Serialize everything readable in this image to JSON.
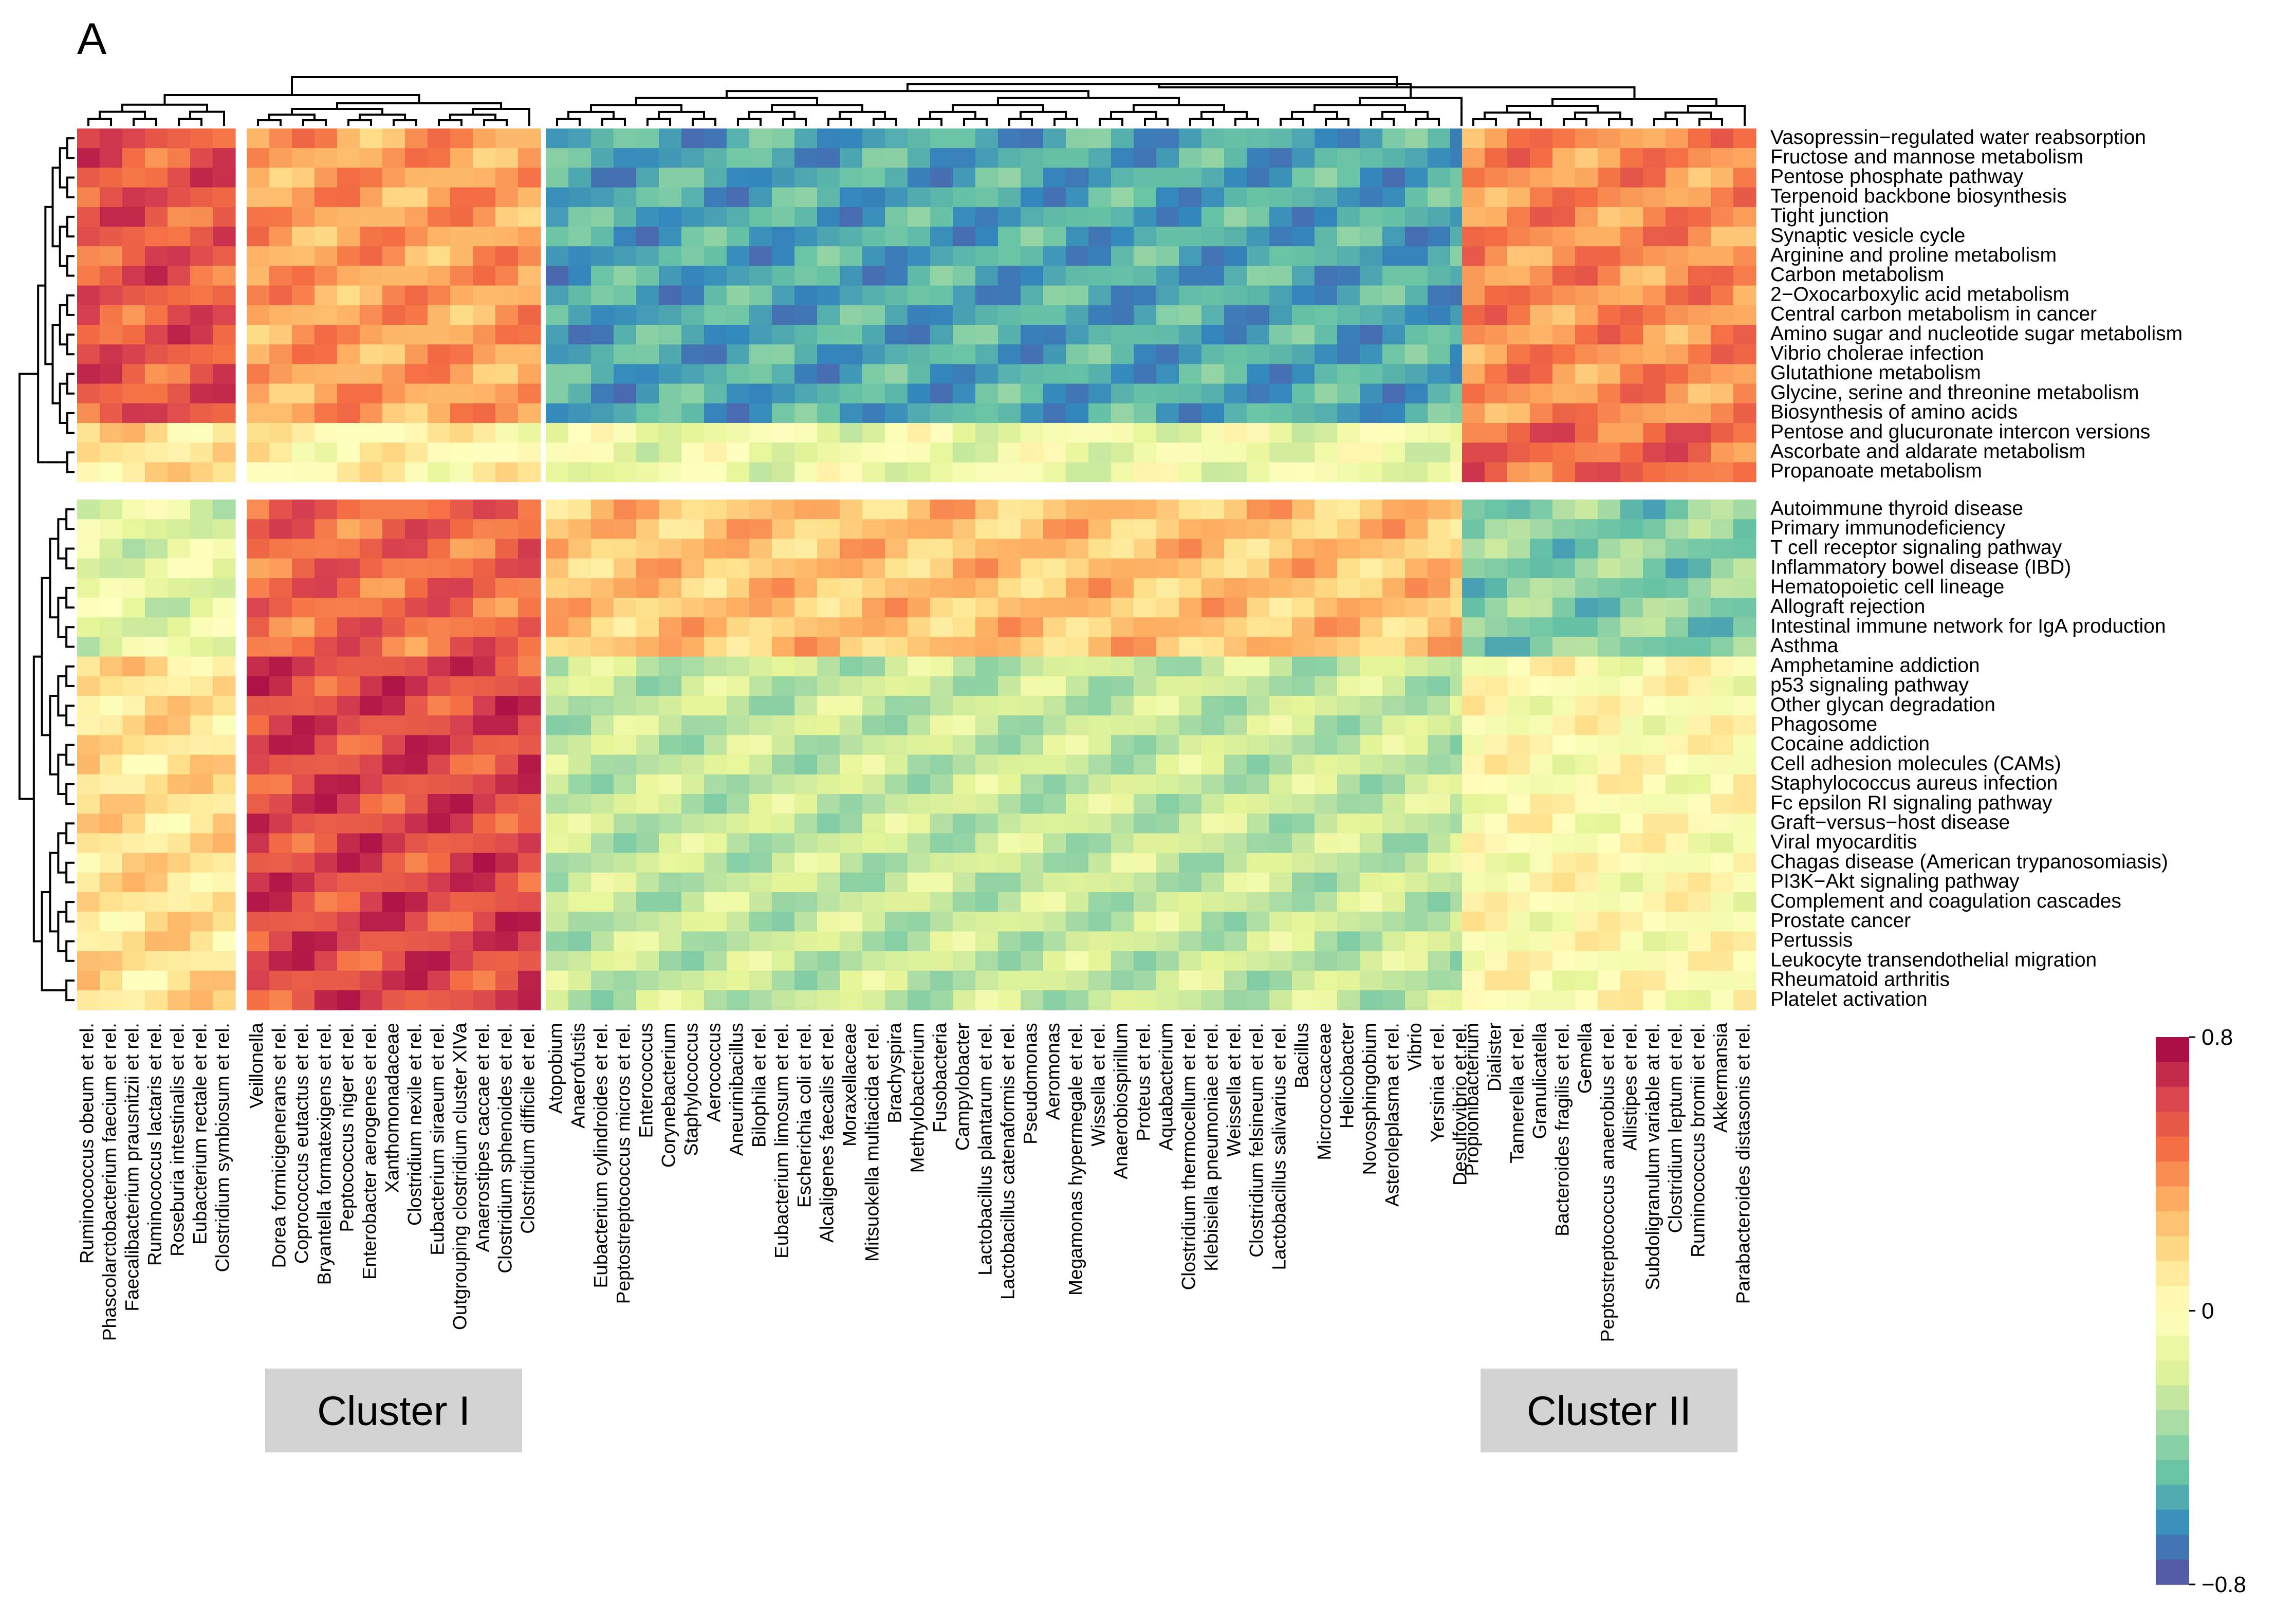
{
  "chart_data": {
    "type": "heatmap",
    "panel_label": "A",
    "color_scale": {
      "min": -0.8,
      "max": 0.8,
      "tick_labels": [
        "0.8",
        "0",
        "−0.8"
      ],
      "colors": [
        "#5E4FA2",
        "#3288BD",
        "#66C2A5",
        "#ABDDA4",
        "#E6F598",
        "#FFFFBF",
        "#FEE08B",
        "#FDAE61",
        "#F46D43",
        "#D53E4F",
        "#9E0142"
      ]
    },
    "rows": [
      "Vasopressin−regulated water reabsorption",
      "Fructose and mannose metabolism",
      "Pentose phosphate pathway",
      "Terpenoid backbone biosynthesis",
      "Tight junction",
      "Synaptic vesicle cycle",
      "Arginine and proline metabolism",
      "Carbon metabolism",
      "2−Oxocarboxylic acid metabolism",
      "Central carbon metabolism in cancer",
      "Amino sugar and nucleotide sugar metabolism",
      "Vibrio cholerae infection",
      "Glutathione metabolism",
      "Glycine, serine and threonine metabolism",
      "Biosynthesis of amino acids",
      "Pentose and glucuronate intercon versions",
      "Ascorbate and aldarate metabolism",
      "Propanoate metabolism",
      "Autoimmune thyroid disease",
      "Primary immunodeficiency",
      "T cell receptor signaling pathway",
      "Inflammatory bowel disease (IBD)",
      "Hematopoietic cell lineage",
      "Allograft rejection",
      "Intestinal immune network for IgA production",
      "Asthma",
      "Amphetamine addiction",
      "p53 signaling pathway",
      "Other glycan degradation",
      "Phagosome",
      "Cocaine addiction",
      "Cell adhesion molecules (CAMs)",
      "Staphylococcus aureus infection",
      "Fc epsilon RI signaling pathway",
      "Graft−versus−host disease",
      "Viral myocarditis",
      "Chagas disease (American trypanosomiasis)",
      "PI3K−Akt signaling pathway",
      "Complement and coagulation cascades",
      "Prostate cancer",
      "Pertussis",
      "Leukocyte transendothelial migration",
      "Rheumatoid arthritis",
      "Platelet activation"
    ],
    "row_groups": [
      18,
      26
    ],
    "column_groups": [
      {
        "columns": [
          "Ruminococcus obeum et rel.",
          "Phascolarctobacterium faecium et rel.",
          "Faecalibacterium prausnitzii et rel.",
          "Ruminococcus lactaris et rel.",
          "Roseburia intestinalis et rel.",
          "Eubacterium rectale et rel.",
          "Clostridium symbiosum et rel."
        ]
      },
      {
        "columns": [
          "Veillonella",
          "Dorea formicigenerans et rel.",
          "Coprococcus eutactus et rel.",
          "Bryantella formatexigens et rel.",
          "Peptococcus niger et rel.",
          "Enterobacter aerogenes et rel.",
          "Xanthomonadaceae",
          "Clostridium nexile et rel.",
          "Eubacterium siraeum et rel.",
          "Outgrouping clostridium cluster XIVa",
          "Anaerostipes caccae et rel.",
          "Clostridium sphenoides et rel.",
          "Clostridium difficile et rel."
        ]
      },
      {
        "columns": [
          "Atopobium",
          "Anaerofustis",
          "Eubacterium cylindroides et rel.",
          "Peptostreptococcus micros et rel.",
          "Enterococcus",
          "Corynebacterium",
          "Staphylococcus",
          "Aerococcus",
          "Aneurinibacillus",
          "Bilophila et rel.",
          "Eubacterium limosum et rel.",
          "Escherichia coli et rel.",
          "Alcaligenes faecalis et rel.",
          "Moraxellaceae",
          "Mitsuokella multiacida et rel.",
          "Brachyspira",
          "Methylobacterium",
          "Fusobacteria",
          "Campylobacter",
          "Lactobacillus plantarum et rel.",
          "Lactobacillus catenaformis et rel.",
          "Pseudomonas",
          "Aeromonas",
          "Megamonas hypermegale et rel.",
          "Wissella et rel.",
          "Anaerobiospirillum",
          "Proteus et rel.",
          "Aquabacterium",
          "Clostridium thermocellum et rel.",
          "Klebisiella pneumoniae et rel.",
          "Weissella et rel.",
          "Clostridium felsineum et rel.",
          "Lactobacillus salivarius et rel.",
          "Bacillus",
          "Micrococcaceae",
          "Helicobacter",
          "Novosphingobium",
          "Asteroleplasma et rel.",
          "Vibrio",
          "Yersinia et rel.",
          "Desulfovibrio et rel."
        ]
      },
      {
        "columns": [
          "Propionibacterium",
          "Dialister",
          "Tannerella et rel.",
          "Granulicatella",
          "Bacteroides fragilis et rel.",
          "Gemella",
          "Peptostreptococcus anaerobius et rel.",
          "Allistipes et rel.",
          "Subdoligranulum variable at rel.",
          "Clostridium leptum et rel.",
          "Ruminococcus bromii et rel.",
          "Akkermansia",
          "Parabacteroides distasonis et rel."
        ]
      }
    ],
    "clusters": [
      {
        "label": "Cluster I",
        "column_group": 1
      },
      {
        "label": "Cluster II",
        "column_group": 3
      }
    ],
    "block_values": [
      [
        0.55,
        0.35,
        -0.55,
        0.4
      ],
      [
        0.15,
        0.05,
        -0.1,
        0.5
      ],
      [
        -0.15,
        0.5,
        0.25,
        -0.4
      ],
      [
        0.15,
        0.6,
        -0.25,
        0.0
      ]
    ]
  }
}
